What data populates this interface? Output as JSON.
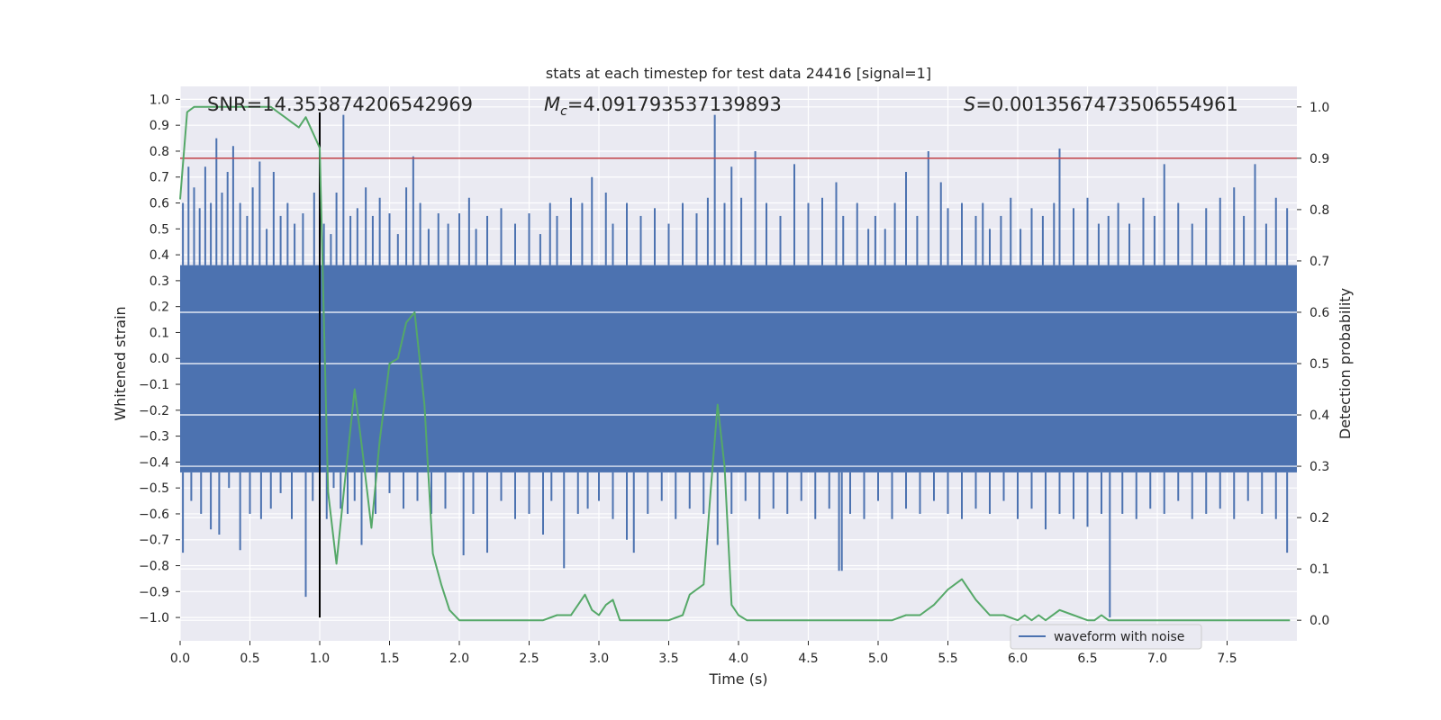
{
  "chart_data": {
    "type": "line",
    "title": "stats at each timestep for test data 24416 [signal=1]",
    "xlabel": "Time (s)",
    "ylabel": "Whitened strain",
    "y2label": "Detection probability",
    "xlim": [
      0.0,
      8.0
    ],
    "ylim": [
      -1.09,
      1.05
    ],
    "y2lim": [
      -0.04,
      1.04
    ],
    "x_ticks": [
      "0.0",
      "0.5",
      "1.0",
      "1.5",
      "2.0",
      "2.5",
      "3.0",
      "3.5",
      "4.0",
      "4.5",
      "5.0",
      "5.5",
      "6.0",
      "6.5",
      "7.0",
      "7.5"
    ],
    "y_ticks": [
      "1.0",
      "0.9",
      "0.8",
      "0.7",
      "0.6",
      "0.5",
      "0.4",
      "0.3",
      "0.2",
      "0.1",
      "0.0",
      "−0.1",
      "−0.2",
      "−0.3",
      "−0.4",
      "−0.5",
      "−0.6",
      "−0.7",
      "−0.8",
      "−0.9",
      "−1.0"
    ],
    "y2_ticks": [
      "1.0",
      "0.9",
      "0.8",
      "0.7",
      "0.6",
      "0.5",
      "0.4",
      "0.3",
      "0.2",
      "0.1",
      "0.0"
    ],
    "grid": true,
    "legend_position": "lower-right",
    "annotations": {
      "snr": "SNR=14.353874206542969",
      "mc_symbol": "M",
      "mc_sub": "c",
      "mc_value": "=4.091793537139893",
      "s_symbol": "S",
      "s_value": "=0.0013567473506554961"
    },
    "series": [
      {
        "name": "waveform with noise",
        "axis": "left",
        "color": "#4c72b0",
        "band": {
          "upper": 0.36,
          "lower": -0.44
        },
        "spikes_up": [
          [
            0.02,
            0.6
          ],
          [
            0.06,
            0.74
          ],
          [
            0.1,
            0.66
          ],
          [
            0.14,
            0.58
          ],
          [
            0.18,
            0.74
          ],
          [
            0.22,
            0.6
          ],
          [
            0.26,
            0.85
          ],
          [
            0.3,
            0.64
          ],
          [
            0.34,
            0.72
          ],
          [
            0.38,
            0.82
          ],
          [
            0.43,
            0.6
          ],
          [
            0.48,
            0.55
          ],
          [
            0.52,
            0.66
          ],
          [
            0.57,
            0.76
          ],
          [
            0.62,
            0.5
          ],
          [
            0.67,
            0.72
          ],
          [
            0.72,
            0.55
          ],
          [
            0.77,
            0.6
          ],
          [
            0.82,
            0.52
          ],
          [
            0.88,
            0.56
          ],
          [
            0.96,
            0.64
          ],
          [
            1.03,
            0.52
          ],
          [
            1.08,
            0.48
          ],
          [
            1.12,
            0.64
          ],
          [
            1.17,
            0.94
          ],
          [
            1.22,
            0.55
          ],
          [
            1.27,
            0.58
          ],
          [
            1.33,
            0.66
          ],
          [
            1.38,
            0.55
          ],
          [
            1.43,
            0.62
          ],
          [
            1.5,
            0.56
          ],
          [
            1.56,
            0.48
          ],
          [
            1.62,
            0.66
          ],
          [
            1.67,
            0.78
          ],
          [
            1.72,
            0.6
          ],
          [
            1.78,
            0.5
          ],
          [
            1.85,
            0.56
          ],
          [
            1.92,
            0.52
          ],
          [
            2.0,
            0.56
          ],
          [
            2.07,
            0.62
          ],
          [
            2.12,
            0.5
          ],
          [
            2.2,
            0.55
          ],
          [
            2.3,
            0.58
          ],
          [
            2.4,
            0.52
          ],
          [
            2.5,
            0.56
          ],
          [
            2.58,
            0.48
          ],
          [
            2.65,
            0.6
          ],
          [
            2.7,
            0.55
          ],
          [
            2.8,
            0.62
          ],
          [
            2.88,
            0.6
          ],
          [
            2.95,
            0.7
          ],
          [
            3.05,
            0.64
          ],
          [
            3.1,
            0.52
          ],
          [
            3.2,
            0.6
          ],
          [
            3.3,
            0.55
          ],
          [
            3.4,
            0.58
          ],
          [
            3.5,
            0.52
          ],
          [
            3.6,
            0.6
          ],
          [
            3.7,
            0.56
          ],
          [
            3.78,
            0.62
          ],
          [
            3.83,
            0.94
          ],
          [
            3.9,
            0.6
          ],
          [
            3.95,
            0.74
          ],
          [
            4.02,
            0.62
          ],
          [
            4.12,
            0.8
          ],
          [
            4.2,
            0.6
          ],
          [
            4.3,
            0.55
          ],
          [
            4.4,
            0.75
          ],
          [
            4.5,
            0.6
          ],
          [
            4.6,
            0.62
          ],
          [
            4.7,
            0.68
          ],
          [
            4.75,
            0.55
          ],
          [
            4.85,
            0.6
          ],
          [
            4.93,
            0.5
          ],
          [
            4.98,
            0.55
          ],
          [
            5.05,
            0.5
          ],
          [
            5.12,
            0.6
          ],
          [
            5.2,
            0.72
          ],
          [
            5.28,
            0.55
          ],
          [
            5.36,
            0.8
          ],
          [
            5.45,
            0.68
          ],
          [
            5.5,
            0.58
          ],
          [
            5.6,
            0.6
          ],
          [
            5.7,
            0.55
          ],
          [
            5.75,
            0.6
          ],
          [
            5.8,
            0.5
          ],
          [
            5.88,
            0.55
          ],
          [
            5.95,
            0.62
          ],
          [
            6.02,
            0.5
          ],
          [
            6.1,
            0.58
          ],
          [
            6.18,
            0.55
          ],
          [
            6.26,
            0.6
          ],
          [
            6.3,
            0.81
          ],
          [
            6.4,
            0.58
          ],
          [
            6.5,
            0.62
          ],
          [
            6.58,
            0.52
          ],
          [
            6.65,
            0.55
          ],
          [
            6.72,
            0.6
          ],
          [
            6.8,
            0.52
          ],
          [
            6.9,
            0.62
          ],
          [
            6.98,
            0.55
          ],
          [
            7.05,
            0.75
          ],
          [
            7.15,
            0.6
          ],
          [
            7.25,
            0.52
          ],
          [
            7.35,
            0.58
          ],
          [
            7.45,
            0.62
          ],
          [
            7.55,
            0.66
          ],
          [
            7.62,
            0.55
          ],
          [
            7.7,
            0.75
          ],
          [
            7.78,
            0.52
          ],
          [
            7.85,
            0.62
          ],
          [
            7.93,
            0.58
          ]
        ],
        "spikes_down": [
          [
            0.02,
            -0.75
          ],
          [
            0.08,
            -0.55
          ],
          [
            0.15,
            -0.6
          ],
          [
            0.22,
            -0.66
          ],
          [
            0.28,
            -0.68
          ],
          [
            0.35,
            -0.5
          ],
          [
            0.43,
            -0.74
          ],
          [
            0.5,
            -0.6
          ],
          [
            0.58,
            -0.62
          ],
          [
            0.65,
            -0.58
          ],
          [
            0.72,
            -0.52
          ],
          [
            0.8,
            -0.62
          ],
          [
            0.9,
            -0.92
          ],
          [
            0.95,
            -0.55
          ],
          [
            1.05,
            -0.62
          ],
          [
            1.1,
            -0.5
          ],
          [
            1.15,
            -0.58
          ],
          [
            1.2,
            -0.6
          ],
          [
            1.25,
            -0.55
          ],
          [
            1.3,
            -0.72
          ],
          [
            1.4,
            -0.6
          ],
          [
            1.5,
            -0.52
          ],
          [
            1.6,
            -0.58
          ],
          [
            1.7,
            -0.55
          ],
          [
            1.8,
            -0.6
          ],
          [
            1.9,
            -0.58
          ],
          [
            2.03,
            -0.76
          ],
          [
            2.1,
            -0.6
          ],
          [
            2.2,
            -0.75
          ],
          [
            2.3,
            -0.55
          ],
          [
            2.4,
            -0.62
          ],
          [
            2.5,
            -0.6
          ],
          [
            2.6,
            -0.68
          ],
          [
            2.66,
            -0.55
          ],
          [
            2.75,
            -0.81
          ],
          [
            2.85,
            -0.6
          ],
          [
            2.92,
            -0.58
          ],
          [
            3.0,
            -0.55
          ],
          [
            3.1,
            -0.62
          ],
          [
            3.2,
            -0.7
          ],
          [
            3.25,
            -0.75
          ],
          [
            3.35,
            -0.6
          ],
          [
            3.45,
            -0.55
          ],
          [
            3.55,
            -0.62
          ],
          [
            3.65,
            -0.58
          ],
          [
            3.75,
            -0.6
          ],
          [
            3.85,
            -0.72
          ],
          [
            3.95,
            -0.6
          ],
          [
            4.05,
            -0.55
          ],
          [
            4.15,
            -0.62
          ],
          [
            4.25,
            -0.58
          ],
          [
            4.35,
            -0.6
          ],
          [
            4.45,
            -0.55
          ],
          [
            4.55,
            -0.62
          ],
          [
            4.65,
            -0.58
          ],
          [
            4.72,
            -0.82
          ],
          [
            4.74,
            -0.82
          ],
          [
            4.8,
            -0.6
          ],
          [
            4.9,
            -0.62
          ],
          [
            5.0,
            -0.55
          ],
          [
            5.1,
            -0.62
          ],
          [
            5.2,
            -0.58
          ],
          [
            5.3,
            -0.6
          ],
          [
            5.4,
            -0.55
          ],
          [
            5.5,
            -0.6
          ],
          [
            5.6,
            -0.62
          ],
          [
            5.7,
            -0.58
          ],
          [
            5.8,
            -0.6
          ],
          [
            5.9,
            -0.55
          ],
          [
            6.0,
            -0.62
          ],
          [
            6.1,
            -0.58
          ],
          [
            6.2,
            -0.66
          ],
          [
            6.3,
            -0.6
          ],
          [
            6.4,
            -0.62
          ],
          [
            6.5,
            -0.65
          ],
          [
            6.6,
            -0.6
          ],
          [
            6.66,
            -1.0
          ],
          [
            6.75,
            -0.6
          ],
          [
            6.85,
            -0.62
          ],
          [
            6.95,
            -0.58
          ],
          [
            7.05,
            -0.6
          ],
          [
            7.15,
            -0.55
          ],
          [
            7.25,
            -0.62
          ],
          [
            7.35,
            -0.6
          ],
          [
            7.45,
            -0.58
          ],
          [
            7.55,
            -0.62
          ],
          [
            7.65,
            -0.55
          ],
          [
            7.75,
            -0.6
          ],
          [
            7.85,
            -0.62
          ],
          [
            7.93,
            -0.75
          ]
        ]
      },
      {
        "name": "",
        "axis": "right",
        "color": "#55a868",
        "x": [
          0.0,
          0.05,
          0.1,
          0.2,
          0.3,
          0.4,
          0.5,
          0.6,
          0.65,
          0.7,
          0.75,
          0.8,
          0.85,
          0.9,
          0.95,
          1.0,
          1.06,
          1.12,
          1.18,
          1.25,
          1.31,
          1.37,
          1.43,
          1.5,
          1.56,
          1.62,
          1.68,
          1.75,
          1.81,
          1.87,
          1.93,
          2.0,
          2.05,
          2.1,
          2.2,
          2.3,
          2.4,
          2.5,
          2.6,
          2.7,
          2.75,
          2.8,
          2.85,
          2.9,
          2.95,
          3.0,
          3.05,
          3.1,
          3.15,
          3.2,
          3.25,
          3.3,
          3.35,
          3.4,
          3.5,
          3.6,
          3.65,
          3.7,
          3.75,
          3.8,
          3.85,
          3.9,
          3.95,
          4.0,
          4.06,
          4.12,
          4.18,
          4.24,
          4.3,
          4.4,
          4.5,
          4.6,
          4.7,
          4.8,
          4.9,
          5.0,
          5.1,
          5.2,
          5.3,
          5.4,
          5.5,
          5.6,
          5.7,
          5.8,
          5.9,
          6.0,
          6.05,
          6.1,
          6.15,
          6.2,
          6.3,
          6.4,
          6.5,
          6.55,
          6.6,
          6.65,
          6.7,
          6.75,
          6.8,
          6.85,
          6.9,
          7.0,
          7.2,
          7.4,
          7.6,
          7.8,
          7.95
        ],
        "values": [
          0.82,
          0.99,
          1.0,
          1.0,
          1.0,
          1.0,
          1.0,
          1.0,
          1.0,
          0.99,
          0.98,
          0.97,
          0.96,
          0.98,
          0.95,
          0.92,
          0.25,
          0.11,
          0.27,
          0.45,
          0.32,
          0.18,
          0.35,
          0.5,
          0.51,
          0.58,
          0.6,
          0.42,
          0.13,
          0.07,
          0.02,
          0.0,
          0.0,
          0.0,
          0.0,
          0.0,
          0.0,
          0.0,
          0.0,
          0.01,
          0.01,
          0.01,
          0.03,
          0.05,
          0.02,
          0.01,
          0.03,
          0.04,
          0.0,
          0.0,
          0.0,
          0.0,
          0.0,
          0.0,
          0.0,
          0.01,
          0.05,
          0.06,
          0.07,
          0.25,
          0.42,
          0.3,
          0.03,
          0.01,
          0.0,
          0.0,
          0.0,
          0.0,
          0.0,
          0.0,
          0.0,
          0.0,
          0.0,
          0.0,
          0.0,
          0.0,
          0.0,
          0.01,
          0.01,
          0.03,
          0.06,
          0.08,
          0.04,
          0.01,
          0.01,
          0.0,
          0.01,
          0.0,
          0.01,
          0.0,
          0.02,
          0.01,
          0.0,
          0.0,
          0.01,
          0.0,
          0.0,
          0.0,
          0.0,
          0.0,
          0.0,
          0.0,
          0.0,
          0.0,
          0.0,
          0.0,
          0.0
        ]
      }
    ],
    "reference_lines": {
      "threshold_right": 0.9,
      "threshold_color": "#c44e52",
      "vertical_x": 1.0,
      "vertical_ymin": -1.0,
      "vertical_ymax": 0.95,
      "vertical_color": "#000000"
    }
  }
}
